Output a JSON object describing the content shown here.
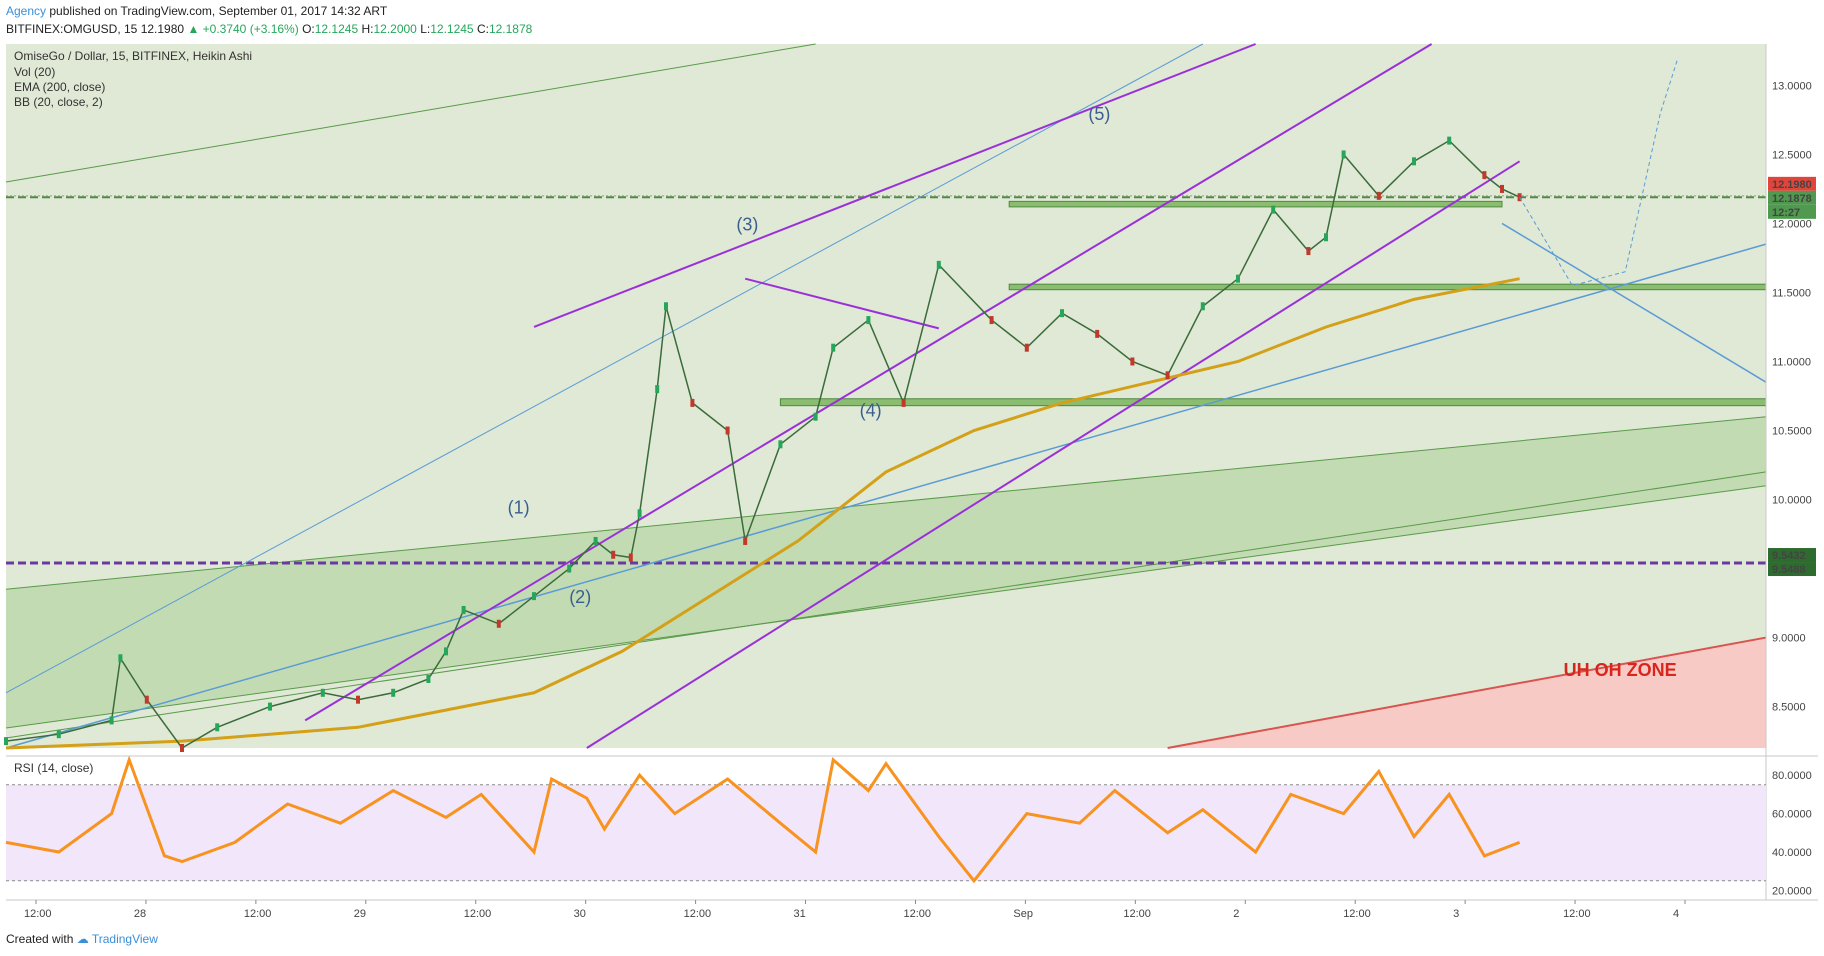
{
  "header": {
    "author": "Agency",
    "published": "published on TradingView.com, September 01, 2017 14:32 ART",
    "symbol": "BITFINEX:OMGUSD, 15",
    "last": "12.1980",
    "change": "▲ +0.3740 (+3.16%)",
    "o_label": "O:",
    "o_value": "12.1245",
    "h_label": "H:",
    "h_value": "12.2000",
    "l_label": "L:",
    "l_value": "12.1245",
    "c_label": "C:",
    "c_value": "12.1878"
  },
  "footer": {
    "created_with": "Created with",
    "brand": "TradingView"
  },
  "colors": {
    "up": "#26a65b",
    "down": "#c0392b",
    "channel": "#9b30d9",
    "ema": "#d4a017",
    "rsi": "#f7931e",
    "danger_zone": "#f9c6c4",
    "green_zone": "#9fc98a",
    "blue_line": "#5b9bd5"
  },
  "chart_data": [
    {
      "type": "line",
      "title": "OmiseGo / Dollar, 15, BITFINEX, Heikin Ashi",
      "indicators": [
        "Vol (20)",
        "EMA (200, close)",
        "BB (20, close, 2)"
      ],
      "x_ticks": [
        "12:00",
        "28",
        "12:00",
        "29",
        "12:00",
        "30",
        "12:00",
        "31",
        "12:00",
        "Sep",
        "12:00",
        "2",
        "12:00",
        "3",
        "12:00",
        "4"
      ],
      "ylim": [
        8.2,
        13.3
      ],
      "y_ticks": [
        8.5,
        9.0,
        9.5,
        10.0,
        10.5,
        11.0,
        11.5,
        12.0,
        12.5,
        13.0
      ],
      "y_tick_labels": [
        "8.5000",
        "9.0000",
        "9.5000",
        "10.0000",
        "10.5000",
        "11.0000",
        "11.5000",
        "12.0000",
        "12.5000",
        "13.0000"
      ],
      "price_labels": [
        {
          "label": "12.1980",
          "color": "#e0443a"
        },
        {
          "label": "12.1878",
          "color": "#4f9a4f"
        },
        {
          "label": "12:27",
          "color": "#4f9a4f"
        },
        {
          "label": "9.5432",
          "color": "#2e6b2e"
        },
        {
          "label": "9.5488",
          "color": "#2e6b2e"
        }
      ],
      "series": [
        {
          "name": "Price",
          "x": [
            0,
            0.03,
            0.06,
            0.065,
            0.08,
            0.1,
            0.12,
            0.15,
            0.18,
            0.2,
            0.22,
            0.24,
            0.25,
            0.26,
            0.28,
            0.3,
            0.32,
            0.335,
            0.345,
            0.355,
            0.36,
            0.37,
            0.375,
            0.39,
            0.41,
            0.42,
            0.44,
            0.46,
            0.47,
            0.49,
            0.51,
            0.53,
            0.56,
            0.58,
            0.6,
            0.62,
            0.64,
            0.66,
            0.68,
            0.7,
            0.72,
            0.74,
            0.75,
            0.76,
            0.78,
            0.8,
            0.82,
            0.84,
            0.85,
            0.86
          ],
          "y": [
            8.25,
            8.3,
            8.4,
            8.85,
            8.55,
            8.2,
            8.35,
            8.5,
            8.6,
            8.55,
            8.6,
            8.7,
            8.9,
            9.2,
            9.1,
            9.3,
            9.5,
            9.7,
            9.6,
            9.58,
            9.9,
            10.8,
            11.4,
            10.7,
            10.5,
            9.7,
            10.4,
            10.6,
            11.1,
            11.3,
            10.7,
            11.7,
            11.3,
            11.1,
            11.35,
            11.2,
            11.0,
            10.9,
            11.4,
            11.6,
            12.1,
            11.8,
            11.9,
            12.5,
            12.2,
            12.45,
            12.6,
            12.35,
            12.25,
            12.19
          ]
        },
        {
          "name": "EMA (200, close)",
          "x": [
            0,
            0.1,
            0.2,
            0.3,
            0.35,
            0.4,
            0.45,
            0.5,
            0.55,
            0.6,
            0.65,
            0.7,
            0.75,
            0.8,
            0.86
          ],
          "y": [
            8.2,
            8.25,
            8.35,
            8.6,
            8.9,
            9.3,
            9.7,
            10.2,
            10.5,
            10.7,
            10.85,
            11.0,
            11.25,
            11.45,
            11.6
          ]
        },
        {
          "name": "RSI (14, close)",
          "x": [
            0,
            0.03,
            0.06,
            0.07,
            0.09,
            0.1,
            0.13,
            0.16,
            0.19,
            0.22,
            0.25,
            0.27,
            0.3,
            0.31,
            0.33,
            0.34,
            0.36,
            0.38,
            0.41,
            0.44,
            0.46,
            0.47,
            0.49,
            0.5,
            0.53,
            0.55,
            0.58,
            0.61,
            0.63,
            0.66,
            0.68,
            0.71,
            0.73,
            0.76,
            0.78,
            0.8,
            0.82,
            0.84,
            0.86
          ],
          "y": [
            45,
            40,
            60,
            88,
            38,
            35,
            45,
            65,
            55,
            72,
            58,
            70,
            40,
            78,
            68,
            52,
            80,
            60,
            78,
            55,
            40,
            88,
            72,
            86,
            48,
            25,
            60,
            55,
            72,
            50,
            62,
            40,
            70,
            60,
            82,
            48,
            70,
            38,
            45
          ]
        }
      ],
      "rsi_ylim": [
        15,
        90
      ],
      "rsi_y_ticks": [
        "20.0000",
        "40.0000",
        "60.0000",
        "80.0000"
      ],
      "annotations": [
        "(1)",
        "(2)",
        "(3)",
        "(4)",
        "(5)",
        "UH OH ZONE"
      ]
    }
  ]
}
